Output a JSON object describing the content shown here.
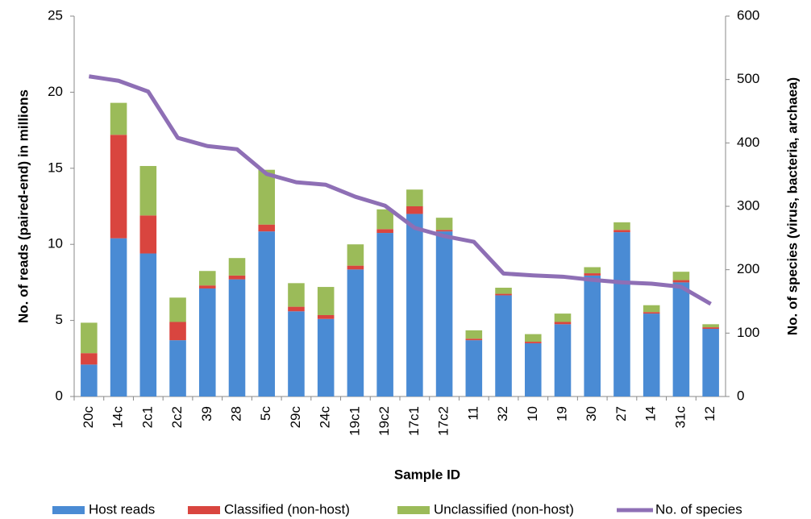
{
  "chart_data": {
    "type": "stacked_bar_line",
    "x_label": "Sample ID",
    "y_label": "No. of reads (paired-end) in millions",
    "y2_label": "No. of species (virus, bacteria, archaea)",
    "categories": [
      "20c",
      "14c",
      "2c1",
      "2c2",
      "39",
      "28",
      "5c",
      "29c",
      "24c",
      "19c1",
      "19c2",
      "17c1",
      "17c2",
      "11",
      "32",
      "10",
      "19",
      "30",
      "27",
      "14",
      "31c",
      "12"
    ],
    "series": [
      {
        "name": "Host reads",
        "color": "#4a8bd4",
        "values": [
          2.1,
          10.4,
          9.4,
          3.7,
          7.1,
          7.7,
          10.85,
          5.6,
          5.1,
          8.35,
          10.75,
          12.0,
          10.85,
          3.7,
          6.65,
          3.5,
          4.75,
          7.95,
          10.8,
          5.45,
          7.5,
          4.45
        ]
      },
      {
        "name": "Classified (non-host)",
        "color": "#d9453f",
        "values": [
          0.75,
          6.8,
          2.5,
          1.2,
          0.2,
          0.25,
          0.45,
          0.3,
          0.25,
          0.25,
          0.25,
          0.5,
          0.1,
          0.1,
          0.1,
          0.1,
          0.15,
          0.15,
          0.15,
          0.1,
          0.15,
          0.1
        ]
      },
      {
        "name": "Unclassified (non-host)",
        "color": "#9bbb59",
        "values": [
          2.0,
          2.1,
          3.25,
          1.6,
          0.95,
          1.15,
          3.6,
          1.55,
          1.85,
          1.4,
          1.3,
          1.1,
          0.8,
          0.55,
          0.4,
          0.5,
          0.55,
          0.4,
          0.5,
          0.45,
          0.55,
          0.2
        ]
      },
      {
        "name": "No. of species",
        "color": "#8e6fb5",
        "axis": "y2",
        "values": [
          505,
          498,
          481,
          408,
          395,
          390,
          351,
          338,
          334,
          315,
          301,
          266,
          253,
          244,
          194,
          191,
          189,
          184,
          180,
          178,
          173,
          146
        ]
      }
    ],
    "ylim": [
      0,
      25
    ],
    "yticks": [
      0,
      5,
      10,
      15,
      20,
      25
    ],
    "y2lim": [
      0,
      600
    ],
    "y2ticks": [
      0,
      100,
      200,
      300,
      400,
      500,
      600
    ]
  }
}
